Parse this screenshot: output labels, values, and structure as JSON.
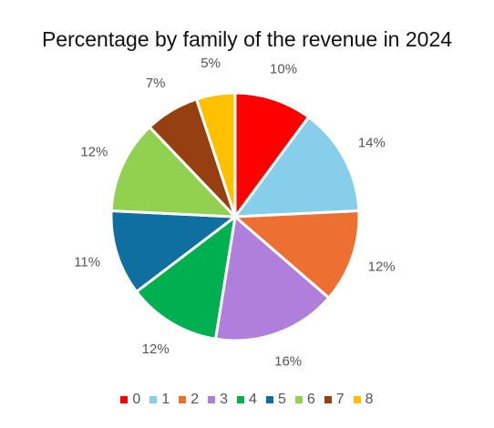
{
  "chart_data": {
    "type": "pie",
    "title": "Percentage by family of the revenue in 2024",
    "categories": [
      "0",
      "1",
      "2",
      "3",
      "4",
      "5",
      "6",
      "7",
      "8"
    ],
    "values": [
      10,
      14,
      12,
      16,
      12,
      11,
      12,
      7,
      5
    ],
    "labels": [
      "10%",
      "14%",
      "12%",
      "16%",
      "12%",
      "11%",
      "12%",
      "7%",
      "5%"
    ],
    "colors": [
      "#ff0000",
      "#87ceeb",
      "#ed7032",
      "#b07fdb",
      "#00b050",
      "#0e6fa0",
      "#92d050",
      "#964011",
      "#ffc000"
    ],
    "legend_position": "bottom",
    "start": "top, clockwise"
  }
}
